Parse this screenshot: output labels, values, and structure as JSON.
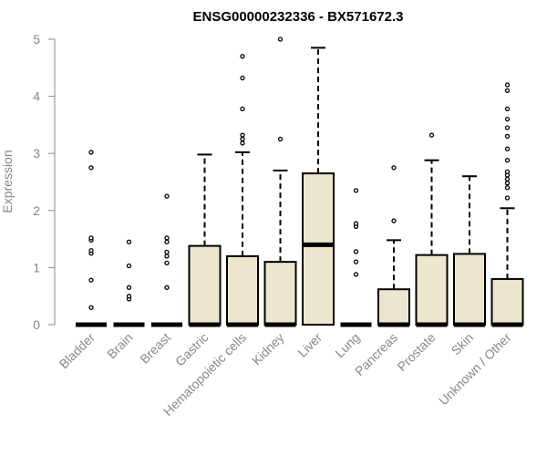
{
  "colors": {
    "box_fill": "#ede6cf",
    "box_stroke": "#000000",
    "axis": "#888888",
    "text_muted": "#888888",
    "title": "#000000"
  },
  "chart_data": {
    "type": "box",
    "title": "ENSG00000232336 - BX571672.3",
    "xlabel": "",
    "ylabel": "Expression",
    "ylim": [
      0,
      5
    ],
    "y_ticks": [
      0,
      1,
      2,
      3,
      4,
      5
    ],
    "categories": [
      "Bladder",
      "Brain",
      "Breast",
      "Gastric",
      "Hematopoietic cells",
      "Kidney",
      "Liver",
      "Lung",
      "Pancreas",
      "Prostate",
      "Skin",
      "Unknown / Other"
    ],
    "boxes": [
      {
        "q1": 0,
        "median": 0,
        "q3": 0,
        "whisker_low": 0,
        "whisker_high": 0,
        "outliers": [
          0.3,
          0.78,
          1.25,
          1.3,
          1.48,
          1.52,
          2.75,
          3.02
        ]
      },
      {
        "q1": 0,
        "median": 0,
        "q3": 0,
        "whisker_low": 0,
        "whisker_high": 0,
        "outliers": [
          0.45,
          0.5,
          0.65,
          1.03,
          1.45
        ]
      },
      {
        "q1": 0,
        "median": 0,
        "q3": 0,
        "whisker_low": 0,
        "whisker_high": 0,
        "outliers": [
          0.65,
          1.08,
          1.2,
          1.27,
          1.45,
          1.52,
          2.25
        ]
      },
      {
        "q1": 0,
        "median": 0,
        "q3": 1.38,
        "whisker_low": 0,
        "whisker_high": 2.98,
        "outliers": []
      },
      {
        "q1": 0,
        "median": 0,
        "q3": 1.2,
        "whisker_low": 0,
        "whisker_high": 3.02,
        "outliers": [
          3.18,
          3.25,
          3.32,
          3.78,
          4.32,
          4.7
        ]
      },
      {
        "q1": 0,
        "median": 0,
        "q3": 1.1,
        "whisker_low": 0,
        "whisker_high": 2.7,
        "outliers": [
          3.25,
          5.0
        ]
      },
      {
        "q1": 0,
        "median": 1.4,
        "q3": 2.65,
        "whisker_low": 0,
        "whisker_high": 4.85,
        "outliers": []
      },
      {
        "q1": 0,
        "median": 0,
        "q3": 0,
        "whisker_low": 0,
        "whisker_high": 0,
        "outliers": [
          0.88,
          1.1,
          1.28,
          1.72,
          1.77,
          2.35
        ]
      },
      {
        "q1": 0,
        "median": 0,
        "q3": 0.62,
        "whisker_low": 0,
        "whisker_high": 1.48,
        "outliers": [
          1.82,
          2.75
        ]
      },
      {
        "q1": 0,
        "median": 0,
        "q3": 1.22,
        "whisker_low": 0,
        "whisker_high": 2.88,
        "outliers": [
          3.32
        ]
      },
      {
        "q1": 0,
        "median": 0,
        "q3": 1.24,
        "whisker_low": 0,
        "whisker_high": 2.6,
        "outliers": []
      },
      {
        "q1": 0,
        "median": 0,
        "q3": 0.8,
        "whisker_low": 0,
        "whisker_high": 2.04,
        "outliers": [
          2.22,
          2.4,
          2.48,
          2.55,
          2.62,
          2.68,
          2.88,
          3.08,
          3.3,
          3.45,
          3.6,
          3.78,
          4.1,
          4.2
        ]
      }
    ],
    "grid": false,
    "legend": "none"
  }
}
